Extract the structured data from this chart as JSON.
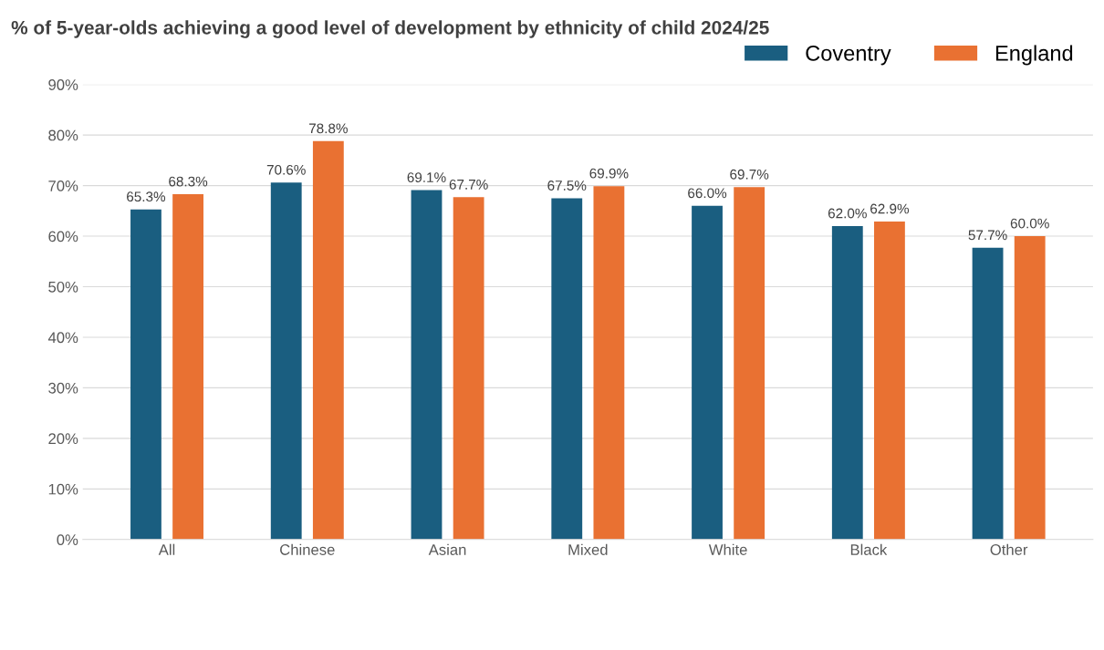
{
  "chart_data": {
    "type": "bar",
    "title": "% of 5-year-olds achieving a good level of development by ethnicity of child 2024/25",
    "categories": [
      "All",
      "Chinese",
      "Asian",
      "Mixed",
      "White",
      "Black",
      "Other"
    ],
    "series": [
      {
        "name": "Coventry",
        "color": "#1a5e80",
        "values": [
          65.3,
          70.6,
          69.1,
          67.5,
          66.0,
          62.0,
          57.7
        ],
        "value_labels": [
          "65.3%",
          "70.6%",
          "69.1%",
          "67.5%",
          "66.0%",
          "62.0%",
          "57.7%"
        ]
      },
      {
        "name": "England",
        "color": "#e97132",
        "values": [
          68.3,
          78.8,
          67.7,
          69.9,
          69.7,
          62.9,
          60.0
        ],
        "value_labels": [
          "68.3%",
          "78.8%",
          "67.7%",
          "69.9%",
          "69.7%",
          "62.9%",
          "60.0%"
        ]
      }
    ],
    "ylim": [
      0,
      90
    ],
    "yticks": [
      {
        "value": 0,
        "label": "0%"
      },
      {
        "value": 10,
        "label": "10%"
      },
      {
        "value": 20,
        "label": "20%"
      },
      {
        "value": 30,
        "label": "30%"
      },
      {
        "value": 40,
        "label": "40%"
      },
      {
        "value": 50,
        "label": "50%"
      },
      {
        "value": 60,
        "label": "60%"
      },
      {
        "value": 70,
        "label": "70%"
      },
      {
        "value": 80,
        "label": "80%"
      },
      {
        "value": 90,
        "label": "90%"
      }
    ],
    "grid": "y",
    "legend": "top right"
  }
}
